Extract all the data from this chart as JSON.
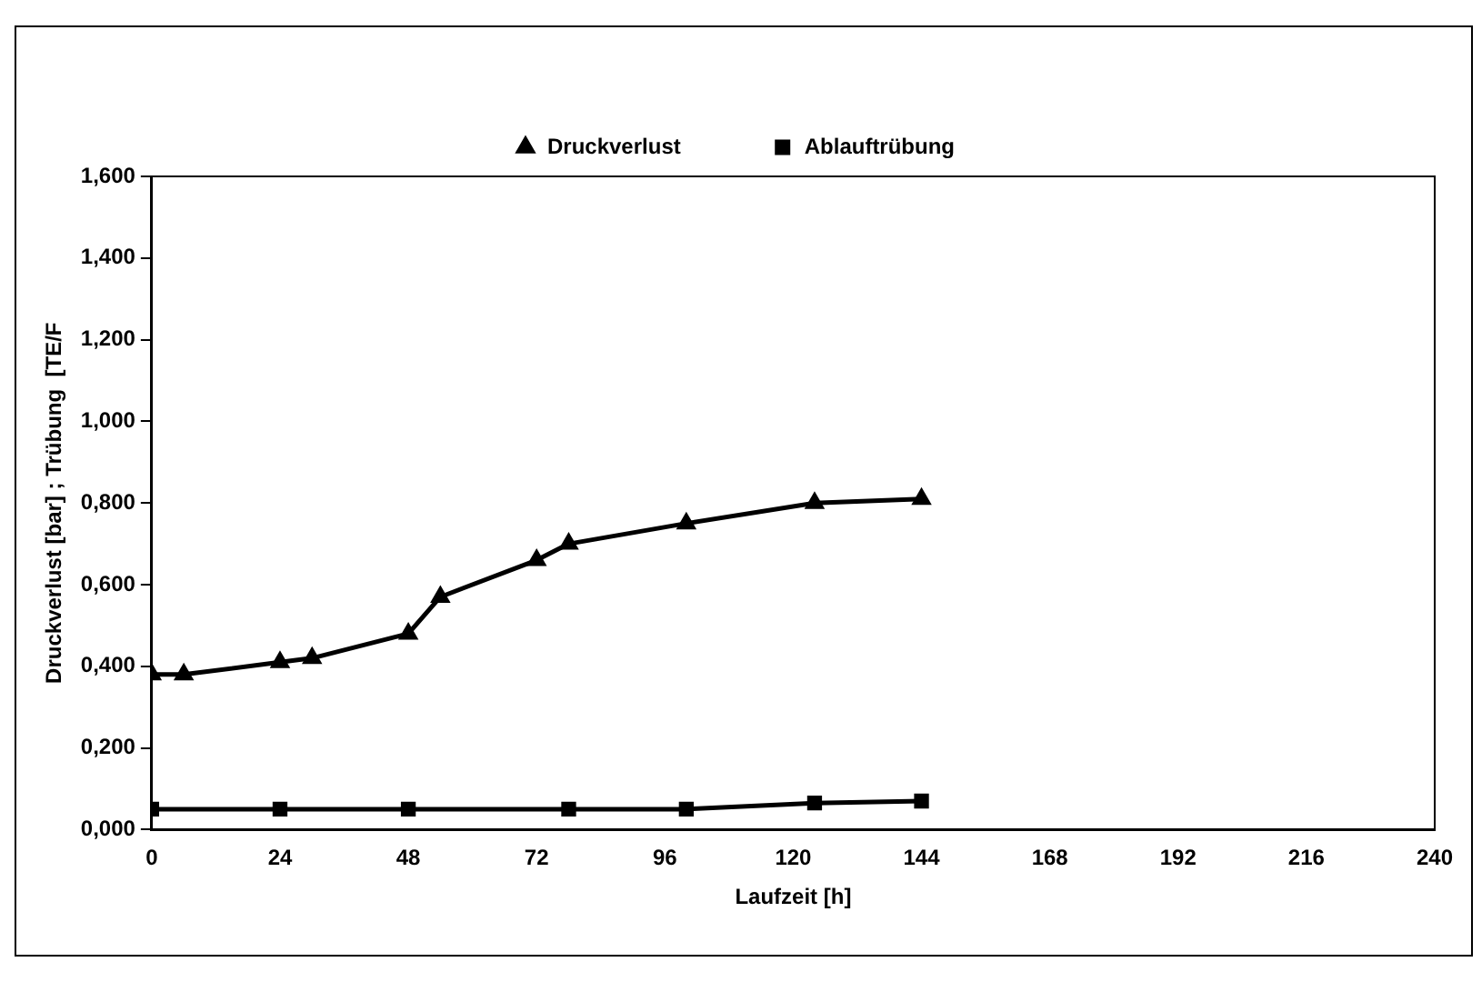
{
  "chart_data": {
    "type": "line",
    "xlabel": "Laufzeit [h]",
    "ylabel": "Druckverlust [bar] ; Trübung  [TE/F",
    "legend": "top",
    "grid": false,
    "xlim": [
      0,
      240
    ],
    "xticks": [
      0,
      24,
      48,
      72,
      96,
      120,
      144,
      168,
      192,
      216,
      240
    ],
    "ylim": [
      0,
      1.6
    ],
    "yticks": [
      {
        "value": 0,
        "label": "0,000"
      },
      {
        "value": 0.2,
        "label": "0,200"
      },
      {
        "value": 0.4,
        "label": "0,400"
      },
      {
        "value": 0.6,
        "label": "0,600"
      },
      {
        "value": 0.8,
        "label": "0,800"
      },
      {
        "value": 1,
        "label": "1,000"
      },
      {
        "value": 1.2,
        "label": "1,200"
      },
      {
        "value": 1.4,
        "label": "1,400"
      },
      {
        "value": 1.6,
        "label": "1,600"
      }
    ],
    "series": [
      {
        "name": "Druckverlust",
        "color": "#000000",
        "marker": "triangle",
        "x": [
          0,
          6,
          24,
          30,
          48,
          54,
          72,
          78,
          100,
          124,
          144
        ],
        "values": [
          0.38,
          0.38,
          0.41,
          0.42,
          0.48,
          0.57,
          0.66,
          0.7,
          0.75,
          0.8,
          0.81
        ]
      },
      {
        "name": "Ablauftrübung",
        "color": "#000000",
        "marker": "square",
        "x": [
          0,
          24,
          48,
          78,
          100,
          124,
          144
        ],
        "values": [
          0.05,
          0.05,
          0.05,
          0.05,
          0.05,
          0.065,
          0.07
        ]
      }
    ]
  }
}
